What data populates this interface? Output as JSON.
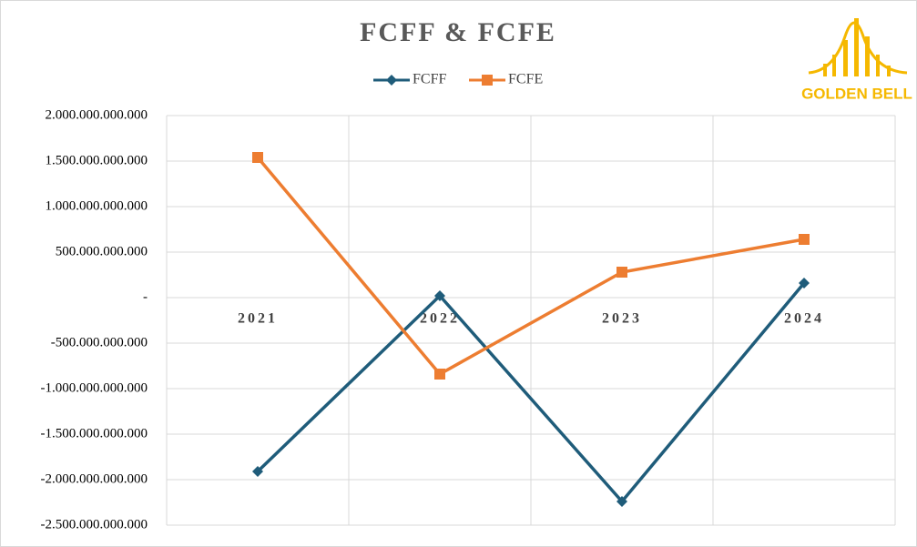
{
  "chart_data": {
    "type": "line",
    "title": "FCFF & FCFE",
    "categories": [
      "2021",
      "2022",
      "2023",
      "2024"
    ],
    "series": [
      {
        "name": "FCFF",
        "color": "#1f5c7a",
        "marker": "diamond",
        "values": [
          -1910000000000,
          20000000000,
          -2240000000000,
          160000000000
        ]
      },
      {
        "name": "FCFE",
        "color": "#ed7d31",
        "marker": "square",
        "values": [
          1540000000000,
          -840000000000,
          280000000000,
          640000000000
        ]
      }
    ],
    "ylim": [
      -2500000000000,
      2000000000000
    ],
    "yticks": [
      {
        "value": -2500000000000,
        "label": "-2.500.000.000.000"
      },
      {
        "value": -2000000000000,
        "label": "-2.000.000.000.000"
      },
      {
        "value": -1500000000000,
        "label": "-1.500.000.000.000"
      },
      {
        "value": -1000000000000,
        "label": "-1.000.000.000.000"
      },
      {
        "value": -500000000000,
        "label": "-500.000.000.000"
      },
      {
        "value": 0,
        "label": "-"
      },
      {
        "value": 500000000000,
        "label": "500.000.000.000"
      },
      {
        "value": 1000000000000,
        "label": "1.000.000.000.000"
      },
      {
        "value": 1500000000000,
        "label": "1.500.000.000.000"
      },
      {
        "value": 2000000000000,
        "label": "2.000.000.000.000"
      }
    ],
    "grid": true,
    "legend": "top",
    "logo": "GOLDEN BELL"
  }
}
